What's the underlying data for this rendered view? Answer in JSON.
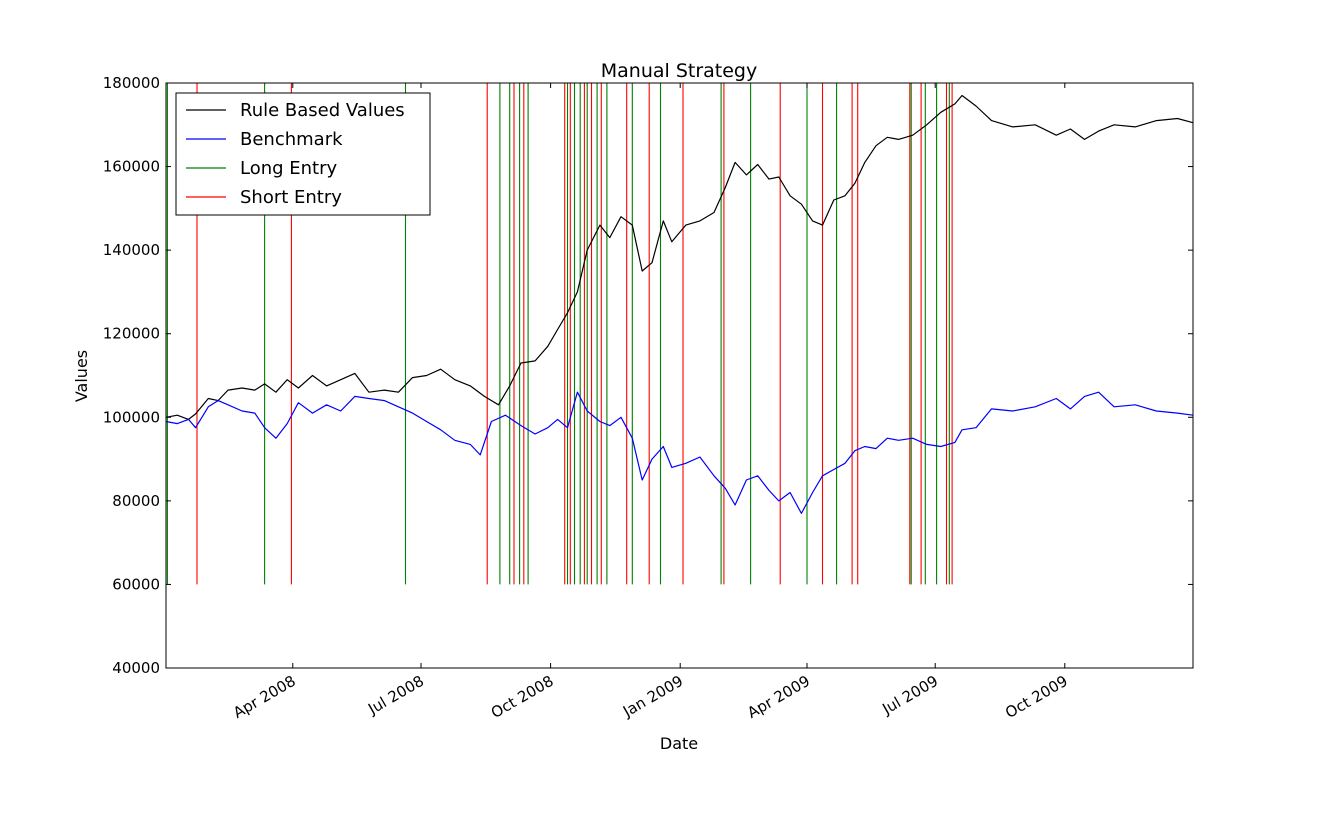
{
  "chart_data": {
    "type": "line",
    "title": "Manual Strategy",
    "xlabel": "Date",
    "ylabel": "Values",
    "xlim": [
      "2008-01-02",
      "2009-12-31"
    ],
    "ylim": [
      40000,
      180000
    ],
    "yticks": [
      40000,
      60000,
      80000,
      100000,
      120000,
      140000,
      160000,
      180000
    ],
    "xticks": [
      {
        "date": "2008-04-01",
        "label": "Apr 2008"
      },
      {
        "date": "2008-07-01",
        "label": "Jul 2008"
      },
      {
        "date": "2008-10-01",
        "label": "Oct 2008"
      },
      {
        "date": "2009-01-01",
        "label": "Jan 2009"
      },
      {
        "date": "2009-04-01",
        "label": "Apr 2009"
      },
      {
        "date": "2009-07-01",
        "label": "Jul 2009"
      },
      {
        "date": "2009-10-01",
        "label": "Oct 2009"
      }
    ],
    "grid": false,
    "legend_position": "top-left",
    "series": [
      {
        "name": "Rule Based Values",
        "color": "#000000",
        "points": [
          [
            "2008-01-02",
            100000
          ],
          [
            "2008-01-10",
            100500
          ],
          [
            "2008-01-18",
            99500
          ],
          [
            "2008-01-23",
            100800
          ],
          [
            "2008-02-01",
            104500
          ],
          [
            "2008-02-08",
            104000
          ],
          [
            "2008-02-15",
            106500
          ],
          [
            "2008-02-25",
            107000
          ],
          [
            "2008-03-05",
            106500
          ],
          [
            "2008-03-12",
            108000
          ],
          [
            "2008-03-20",
            106000
          ],
          [
            "2008-03-28",
            109000
          ],
          [
            "2008-04-05",
            107000
          ],
          [
            "2008-04-15",
            110000
          ],
          [
            "2008-04-25",
            107500
          ],
          [
            "2008-05-05",
            109000
          ],
          [
            "2008-05-15",
            110500
          ],
          [
            "2008-05-25",
            106000
          ],
          [
            "2008-06-05",
            106500
          ],
          [
            "2008-06-15",
            106000
          ],
          [
            "2008-06-25",
            109500
          ],
          [
            "2008-07-05",
            110000
          ],
          [
            "2008-07-15",
            111500
          ],
          [
            "2008-07-25",
            109000
          ],
          [
            "2008-08-05",
            107500
          ],
          [
            "2008-08-15",
            105000
          ],
          [
            "2008-08-25",
            103000
          ],
          [
            "2008-09-02",
            107500
          ],
          [
            "2008-09-10",
            113000
          ],
          [
            "2008-09-20",
            113500
          ],
          [
            "2008-09-29",
            117000
          ],
          [
            "2008-10-06",
            121000
          ],
          [
            "2008-10-13",
            125000
          ],
          [
            "2008-10-20",
            130000
          ],
          [
            "2008-10-27",
            140000
          ],
          [
            "2008-11-05",
            146000
          ],
          [
            "2008-11-12",
            143000
          ],
          [
            "2008-11-20",
            148000
          ],
          [
            "2008-11-28",
            146000
          ],
          [
            "2008-12-05",
            135000
          ],
          [
            "2008-12-12",
            137000
          ],
          [
            "2008-12-20",
            147000
          ],
          [
            "2008-12-26",
            142000
          ],
          [
            "2009-01-05",
            146000
          ],
          [
            "2009-01-15",
            147000
          ],
          [
            "2009-01-25",
            149000
          ],
          [
            "2009-02-02",
            155000
          ],
          [
            "2009-02-09",
            161000
          ],
          [
            "2009-02-17",
            158000
          ],
          [
            "2009-02-25",
            160500
          ],
          [
            "2009-03-05",
            157000
          ],
          [
            "2009-03-12",
            157500
          ],
          [
            "2009-03-20",
            153000
          ],
          [
            "2009-03-28",
            151000
          ],
          [
            "2009-04-05",
            147000
          ],
          [
            "2009-04-12",
            146000
          ],
          [
            "2009-04-20",
            152000
          ],
          [
            "2009-04-28",
            153000
          ],
          [
            "2009-05-05",
            156000
          ],
          [
            "2009-05-12",
            161000
          ],
          [
            "2009-05-20",
            165000
          ],
          [
            "2009-05-28",
            167000
          ],
          [
            "2009-06-05",
            166500
          ],
          [
            "2009-06-15",
            167500
          ],
          [
            "2009-06-25",
            170000
          ],
          [
            "2009-07-05",
            173000
          ],
          [
            "2009-07-15",
            175000
          ],
          [
            "2009-07-20",
            177000
          ],
          [
            "2009-07-30",
            174500
          ],
          [
            "2009-08-10",
            171000
          ],
          [
            "2009-08-25",
            169500
          ],
          [
            "2009-09-10",
            170000
          ],
          [
            "2009-09-25",
            167500
          ],
          [
            "2009-10-05",
            169000
          ],
          [
            "2009-10-15",
            166500
          ],
          [
            "2009-10-25",
            168500
          ],
          [
            "2009-11-05",
            170000
          ],
          [
            "2009-11-20",
            169500
          ],
          [
            "2009-12-05",
            171000
          ],
          [
            "2009-12-20",
            171500
          ],
          [
            "2009-12-31",
            170500
          ]
        ]
      },
      {
        "name": "Benchmark",
        "color": "#0000ff",
        "points": [
          [
            "2008-01-02",
            99000
          ],
          [
            "2008-01-10",
            98500
          ],
          [
            "2008-01-18",
            99500
          ],
          [
            "2008-01-23",
            97500
          ],
          [
            "2008-02-01",
            102500
          ],
          [
            "2008-02-08",
            104000
          ],
          [
            "2008-02-15",
            103000
          ],
          [
            "2008-02-25",
            101500
          ],
          [
            "2008-03-05",
            101000
          ],
          [
            "2008-03-12",
            97500
          ],
          [
            "2008-03-20",
            95000
          ],
          [
            "2008-03-28",
            98500
          ],
          [
            "2008-04-05",
            103500
          ],
          [
            "2008-04-15",
            101000
          ],
          [
            "2008-04-25",
            103000
          ],
          [
            "2008-05-05",
            101500
          ],
          [
            "2008-05-15",
            105000
          ],
          [
            "2008-05-25",
            104500
          ],
          [
            "2008-06-05",
            104000
          ],
          [
            "2008-06-15",
            102500
          ],
          [
            "2008-06-25",
            101000
          ],
          [
            "2008-07-05",
            99000
          ],
          [
            "2008-07-15",
            97000
          ],
          [
            "2008-07-25",
            94500
          ],
          [
            "2008-08-05",
            93500
          ],
          [
            "2008-08-12",
            91000
          ],
          [
            "2008-08-20",
            99000
          ],
          [
            "2008-08-30",
            100500
          ],
          [
            "2008-09-10",
            98000
          ],
          [
            "2008-09-20",
            96000
          ],
          [
            "2008-09-29",
            97500
          ],
          [
            "2008-10-06",
            99500
          ],
          [
            "2008-10-13",
            97500
          ],
          [
            "2008-10-20",
            106000
          ],
          [
            "2008-10-27",
            101500
          ],
          [
            "2008-11-05",
            99000
          ],
          [
            "2008-11-12",
            98000
          ],
          [
            "2008-11-20",
            100000
          ],
          [
            "2008-11-28",
            95000
          ],
          [
            "2008-12-05",
            85000
          ],
          [
            "2008-12-12",
            90000
          ],
          [
            "2008-12-20",
            93000
          ],
          [
            "2008-12-26",
            88000
          ],
          [
            "2009-01-05",
            89000
          ],
          [
            "2009-01-15",
            90500
          ],
          [
            "2009-01-25",
            86000
          ],
          [
            "2009-02-02",
            83000
          ],
          [
            "2009-02-09",
            79000
          ],
          [
            "2009-02-17",
            85000
          ],
          [
            "2009-02-25",
            86000
          ],
          [
            "2009-03-05",
            82500
          ],
          [
            "2009-03-12",
            80000
          ],
          [
            "2009-03-20",
            82000
          ],
          [
            "2009-03-28",
            77000
          ],
          [
            "2009-04-05",
            82000
          ],
          [
            "2009-04-12",
            86000
          ],
          [
            "2009-04-20",
            87500
          ],
          [
            "2009-04-28",
            89000
          ],
          [
            "2009-05-05",
            92000
          ],
          [
            "2009-05-12",
            93000
          ],
          [
            "2009-05-20",
            92500
          ],
          [
            "2009-05-28",
            95000
          ],
          [
            "2009-06-05",
            94500
          ],
          [
            "2009-06-15",
            95000
          ],
          [
            "2009-06-25",
            93500
          ],
          [
            "2009-07-05",
            93000
          ],
          [
            "2009-07-15",
            94000
          ],
          [
            "2009-07-20",
            97000
          ],
          [
            "2009-07-30",
            97500
          ],
          [
            "2009-08-10",
            102000
          ],
          [
            "2009-08-25",
            101500
          ],
          [
            "2009-09-10",
            102500
          ],
          [
            "2009-09-25",
            104500
          ],
          [
            "2009-10-05",
            102000
          ],
          [
            "2009-10-15",
            105000
          ],
          [
            "2009-10-25",
            106000
          ],
          [
            "2009-11-05",
            102500
          ],
          [
            "2009-11-20",
            103000
          ],
          [
            "2009-12-05",
            101500
          ],
          [
            "2009-12-20",
            101000
          ],
          [
            "2009-12-31",
            100500
          ]
        ]
      }
    ],
    "vlines": {
      "ymin": 60000,
      "ymax": 180000,
      "long": {
        "name": "Long Entry",
        "color": "#008000",
        "dates": [
          "2008-01-03",
          "2008-03-12",
          "2008-06-20",
          "2008-08-26",
          "2008-09-02",
          "2008-09-09",
          "2008-09-15",
          "2008-10-13",
          "2008-10-18",
          "2008-10-22",
          "2008-10-27",
          "2008-11-03",
          "2008-11-10",
          "2008-11-28",
          "2008-12-18",
          "2009-01-30",
          "2009-02-20",
          "2009-04-01",
          "2009-04-22",
          "2009-06-14",
          "2009-06-24",
          "2009-07-02",
          "2009-07-11"
        ]
      },
      "short": {
        "name": "Short Entry",
        "color": "#ff0000",
        "dates": [
          "2008-01-24",
          "2008-03-31",
          "2008-08-17",
          "2008-09-05",
          "2008-09-12",
          "2008-10-11",
          "2008-10-15",
          "2008-10-25",
          "2008-10-30",
          "2008-11-06",
          "2008-11-24",
          "2008-12-10",
          "2009-01-03",
          "2009-02-01",
          "2009-03-13",
          "2009-04-12",
          "2009-05-03",
          "2009-05-07",
          "2009-06-13",
          "2009-06-21",
          "2009-07-09",
          "2009-07-13"
        ]
      }
    }
  }
}
